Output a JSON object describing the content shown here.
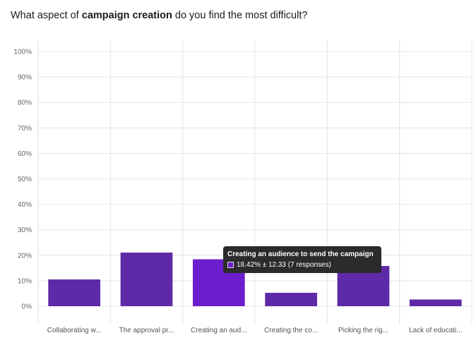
{
  "question": {
    "prefix": "What aspect of ",
    "bold": "campaign creation",
    "suffix": " do you find the most difficult?"
  },
  "colors": {
    "bar": "#5e2aa8",
    "bar_highlight": "#6c1ecc",
    "grid": "#e4e4e4",
    "tooltip_bg": "#2b2b2b"
  },
  "chart_data": {
    "type": "bar",
    "categories": [
      "Collaborating w...",
      "The approval pr...",
      "Creating an aud...",
      "Creating the co...",
      "Picking the rig...",
      "Lack of educati..."
    ],
    "values": [
      10.5,
      21.05,
      18.42,
      5.26,
      15.79,
      2.63
    ],
    "ylim": [
      0,
      100
    ],
    "yticks": [
      "0%",
      "10%",
      "20%",
      "30%",
      "40%",
      "50%",
      "60%",
      "70%",
      "80%",
      "90%",
      "100%"
    ],
    "highlight_index": 2,
    "grid": true,
    "legend": "none"
  },
  "tooltip": {
    "title": "Creating an audience to send the campaign",
    "value": "18.42% ± 12.33 (7 responses)"
  }
}
